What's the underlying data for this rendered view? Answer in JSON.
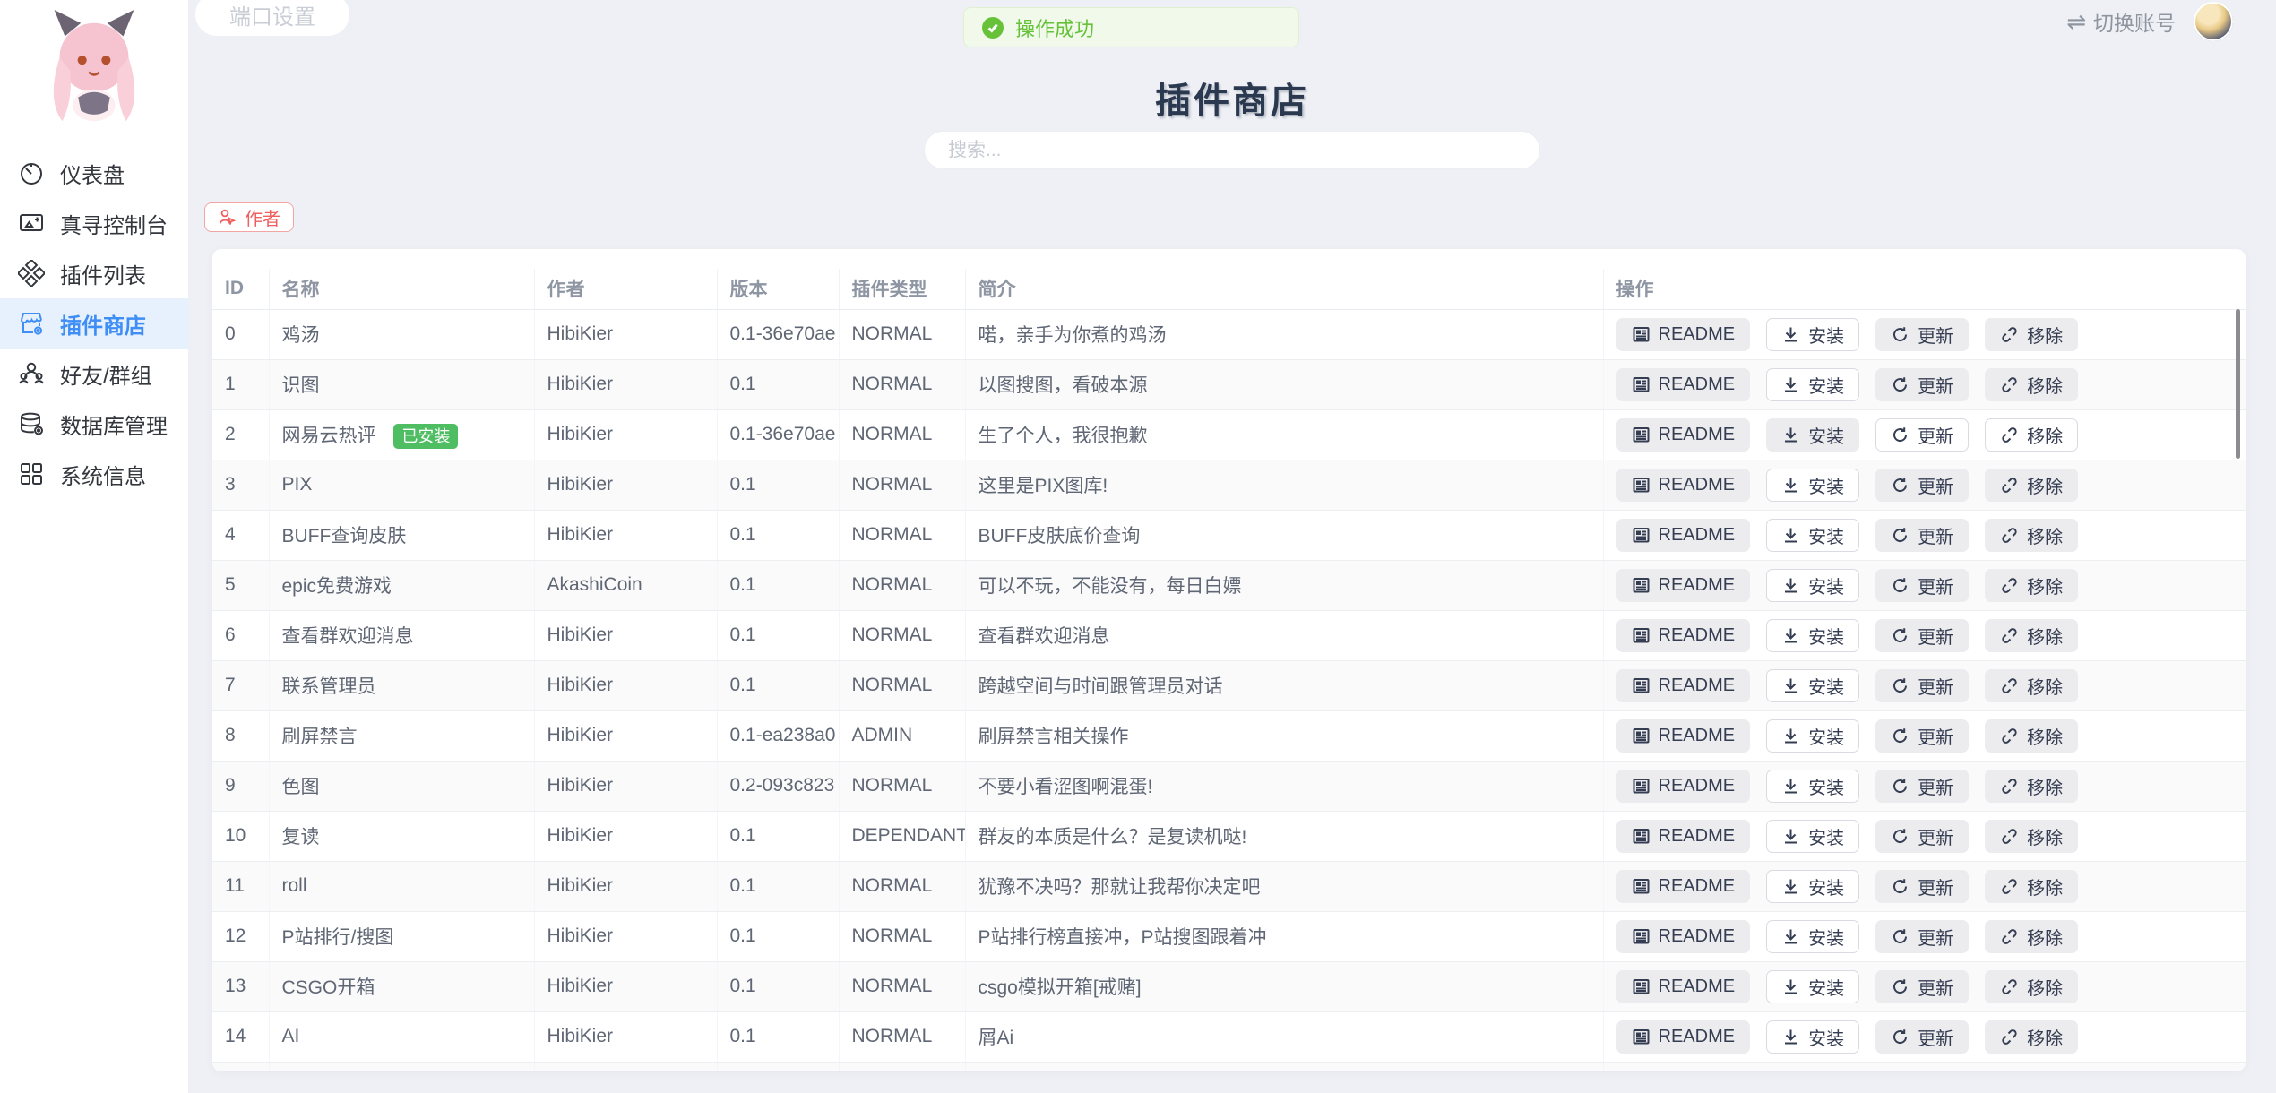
{
  "topbar": {
    "port_button": "端口设置",
    "switch_account": "切换账号",
    "swap_glyph": "⇌"
  },
  "toast": {
    "message": "操作成功"
  },
  "sidebar": {
    "items": [
      {
        "label": "仪表盘",
        "active": false
      },
      {
        "label": "真寻控制台",
        "active": false
      },
      {
        "label": "插件列表",
        "active": false
      },
      {
        "label": "插件商店",
        "active": true
      },
      {
        "label": "好友/群组",
        "active": false
      },
      {
        "label": "数据库管理",
        "active": false
      },
      {
        "label": "系统信息",
        "active": false
      }
    ]
  },
  "main": {
    "title": "插件商店",
    "search_placeholder": "搜索...",
    "author_tag": "作者"
  },
  "colors": {
    "accent_blue": "#3f8ef5",
    "success_green": "#67c23a",
    "badge_green": "#4fbe63",
    "danger_red": "#ee5f5f",
    "page_bg": "#eef0f5"
  },
  "table": {
    "headers": [
      "ID",
      "名称",
      "作者",
      "版本",
      "插件类型",
      "简介",
      "操作"
    ],
    "actions": {
      "readme": "README",
      "install": "安装",
      "update": "更新",
      "remove": "移除"
    },
    "installed_badge": "已安装",
    "rows": [
      {
        "id": "0",
        "name": "鸡汤",
        "installed": false,
        "author": "HibiKier",
        "version": "0.1-36e70ae",
        "type": "NORMAL",
        "intro": "喏，亲手为你煮的鸡汤"
      },
      {
        "id": "1",
        "name": "识图",
        "installed": false,
        "author": "HibiKier",
        "version": "0.1",
        "type": "NORMAL",
        "intro": "以图搜图，看破本源"
      },
      {
        "id": "2",
        "name": "网易云热评",
        "installed": true,
        "author": "HibiKier",
        "version": "0.1-36e70ae",
        "type": "NORMAL",
        "intro": "生了个人，我很抱歉"
      },
      {
        "id": "3",
        "name": "PIX",
        "installed": false,
        "author": "HibiKier",
        "version": "0.1",
        "type": "NORMAL",
        "intro": "这里是PIX图库!"
      },
      {
        "id": "4",
        "name": "BUFF查询皮肤",
        "installed": false,
        "author": "HibiKier",
        "version": "0.1",
        "type": "NORMAL",
        "intro": "BUFF皮肤底价查询"
      },
      {
        "id": "5",
        "name": "epic免费游戏",
        "installed": false,
        "author": "AkashiCoin",
        "version": "0.1",
        "type": "NORMAL",
        "intro": "可以不玩，不能没有，每日白嫖"
      },
      {
        "id": "6",
        "name": "查看群欢迎消息",
        "installed": false,
        "author": "HibiKier",
        "version": "0.1",
        "type": "NORMAL",
        "intro": "查看群欢迎消息"
      },
      {
        "id": "7",
        "name": "联系管理员",
        "installed": false,
        "author": "HibiKier",
        "version": "0.1",
        "type": "NORMAL",
        "intro": "跨越空间与时间跟管理员对话"
      },
      {
        "id": "8",
        "name": "刷屏禁言",
        "installed": false,
        "author": "HibiKier",
        "version": "0.1-ea238a0",
        "type": "ADMIN",
        "intro": "刷屏禁言相关操作"
      },
      {
        "id": "9",
        "name": "色图",
        "installed": false,
        "author": "HibiKier",
        "version": "0.2-093c823",
        "type": "NORMAL",
        "intro": "不要小看涩图啊混蛋!"
      },
      {
        "id": "10",
        "name": "复读",
        "installed": false,
        "author": "HibiKier",
        "version": "0.1",
        "type": "DEPENDANT",
        "intro": "群友的本质是什么？是复读机哒!"
      },
      {
        "id": "11",
        "name": "roll",
        "installed": false,
        "author": "HibiKier",
        "version": "0.1",
        "type": "NORMAL",
        "intro": "犹豫不决吗？那就让我帮你决定吧"
      },
      {
        "id": "12",
        "name": "P站排行/搜图",
        "installed": false,
        "author": "HibiKier",
        "version": "0.1",
        "type": "NORMAL",
        "intro": "P站排行榜直接冲，P站搜图跟着冲"
      },
      {
        "id": "13",
        "name": "CSGO开箱",
        "installed": false,
        "author": "HibiKier",
        "version": "0.1",
        "type": "NORMAL",
        "intro": "csgo模拟开箱[戒赌]"
      },
      {
        "id": "14",
        "name": "AI",
        "installed": false,
        "author": "HibiKier",
        "version": "0.1",
        "type": "NORMAL",
        "intro": "屑Ai"
      }
    ]
  }
}
